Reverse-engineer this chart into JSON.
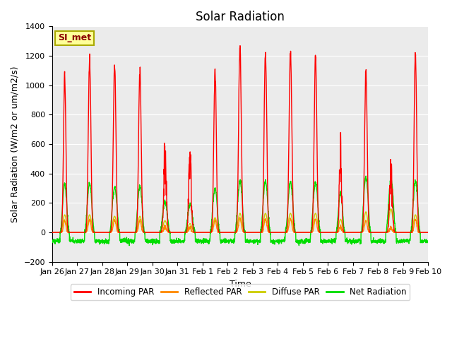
{
  "title": "Solar Radiation",
  "xlabel": "Time",
  "ylabel": "Solar Radiation (W/m2 or um/m2/s)",
  "ylim": [
    -200,
    1400
  ],
  "yticks": [
    -200,
    0,
    200,
    400,
    600,
    800,
    1000,
    1200,
    1400
  ],
  "xtick_labels": [
    "Jan 26",
    "Jan 27",
    "Jan 28",
    "Jan 29",
    "Jan 30",
    "Jan 31",
    "Feb 1",
    "Feb 2",
    "Feb 3",
    "Feb 4",
    "Feb 5",
    "Feb 6",
    "Feb 7",
    "Feb 8",
    "Feb 9",
    "Feb 10"
  ],
  "station_label": "SI_met",
  "colors": {
    "incoming": "#ff0000",
    "reflected": "#ff8800",
    "diffuse": "#cccc00",
    "net": "#00dd00"
  },
  "legend_labels": [
    "Incoming PAR",
    "Reflected PAR",
    "Diffuse PAR",
    "Net Radiation"
  ],
  "bg_color": "#ebebeb",
  "title_fontsize": 12,
  "label_fontsize": 9,
  "tick_fontsize": 8
}
